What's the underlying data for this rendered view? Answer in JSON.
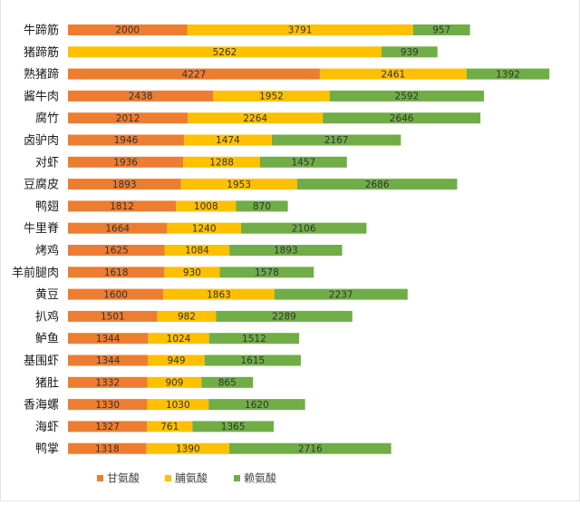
{
  "chart_data": {
    "type": "bar",
    "orientation": "horizontal",
    "stacked": true,
    "categories": [
      "牛蹄筋",
      "猪蹄筋",
      "熟猪蹄",
      "酱牛肉",
      "腐竹",
      "卤驴肉",
      "对虾",
      "豆腐皮",
      "鸭翅",
      "牛里脊",
      "烤鸡",
      "羊前腿肉",
      "黄豆",
      "扒鸡",
      "鲈鱼",
      "基围虾",
      "猪肚",
      "香海螺",
      "海虾",
      "鸭掌"
    ],
    "series": [
      {
        "name": "甘氨酸",
        "color": "#ED7D31",
        "values": [
          2000,
          null,
          4227,
          2438,
          2012,
          1946,
          1936,
          1893,
          1812,
          1664,
          1625,
          1618,
          1600,
          1501,
          1344,
          1344,
          1332,
          1330,
          1327,
          1318
        ]
      },
      {
        "name": "脯氨酸",
        "color": "#FFC000",
        "values": [
          3791,
          5262,
          2461,
          1952,
          2264,
          1474,
          1288,
          1953,
          1008,
          1240,
          1084,
          930,
          1863,
          982,
          1024,
          949,
          909,
          1030,
          761,
          1390
        ]
      },
      {
        "name": "赖氨酸",
        "color": "#70AD47",
        "values": [
          957,
          939,
          1392,
          2592,
          2646,
          2167,
          1457,
          2686,
          870,
          2106,
          1893,
          1578,
          2237,
          2289,
          1512,
          1615,
          865,
          1620,
          1365,
          2716
        ]
      }
    ],
    "xlim": [
      0,
      8000
    ],
    "grid": false,
    "legend": "bottom"
  }
}
